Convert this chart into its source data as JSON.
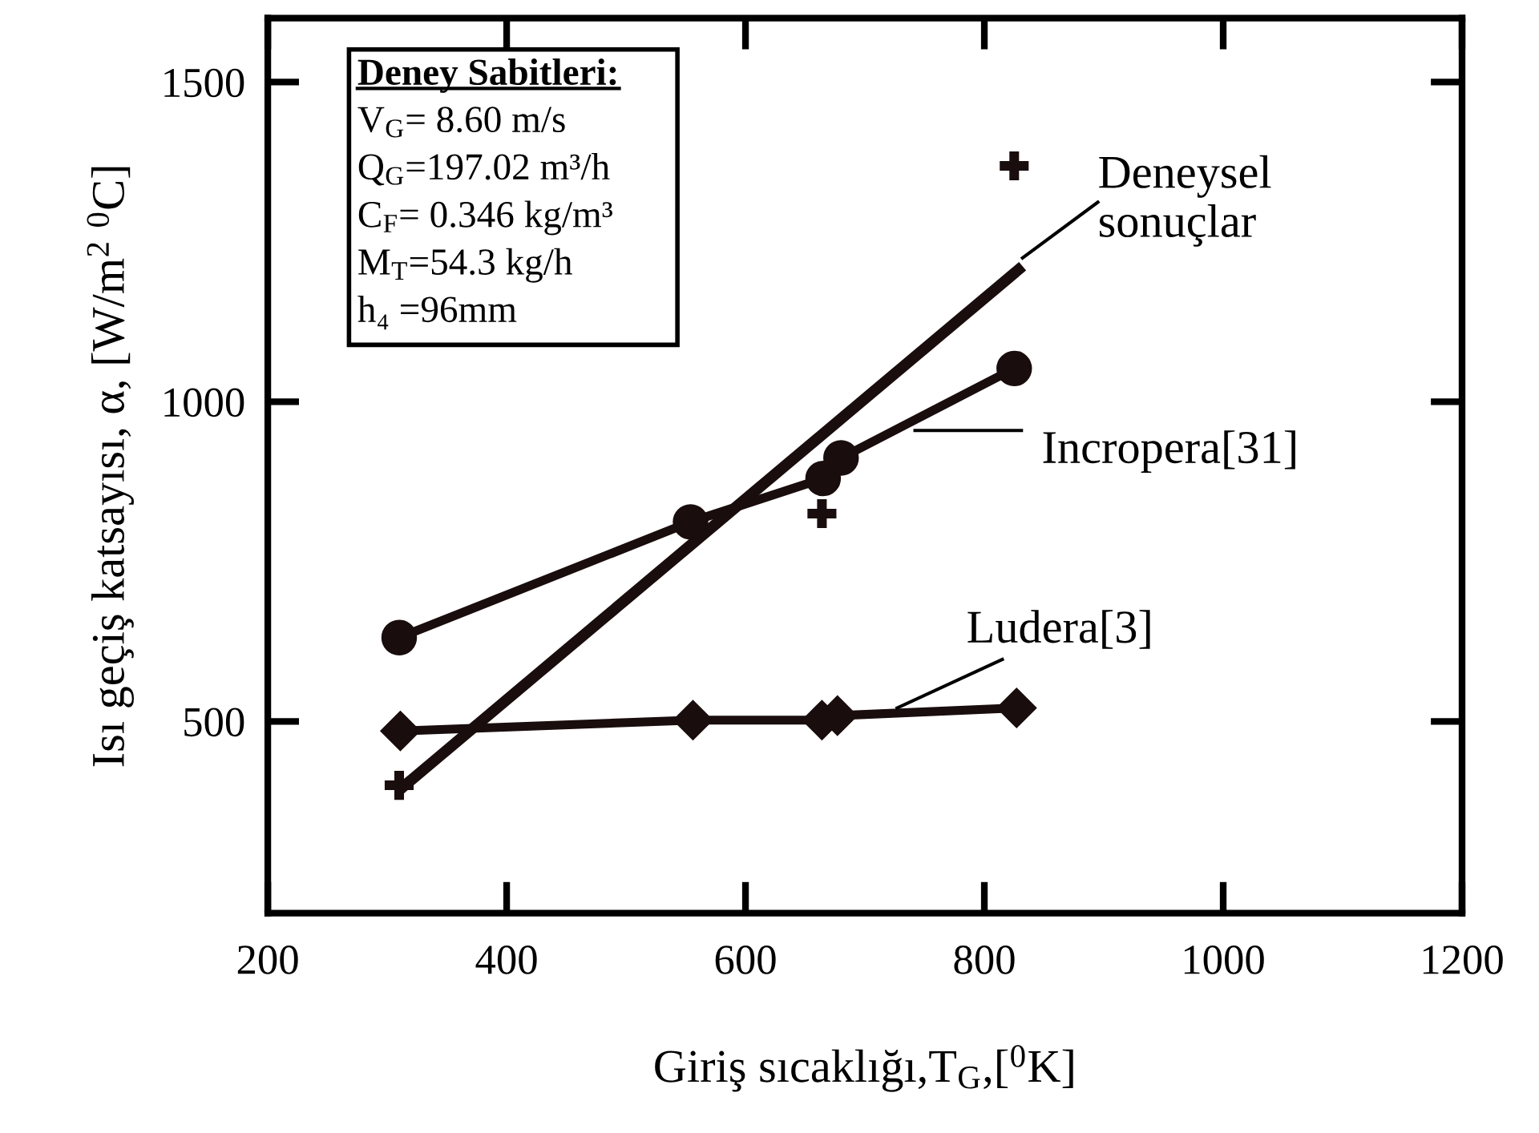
{
  "chart_data": {
    "type": "line",
    "xlabel": "Giriş sıcaklığı,T$_{G}$,[$^{0}$K]",
    "ylabel": "Isı geçiş katsayısı, α, [W/m$^{2}$ $^{0}$C]",
    "xlim": [
      200,
      1200
    ],
    "xticks": [
      200,
      400,
      600,
      800,
      1000,
      1200
    ],
    "ylim": [
      200,
      1600
    ],
    "yticks": [
      500,
      1000,
      1500
    ],
    "grid": false,
    "series": [
      {
        "name": "Deneysel\nsonuçlar",
        "type": "scatter",
        "marker": "cross",
        "color": "#1a0d0d",
        "x": [
          310,
          664,
          825
        ],
        "values": [
          400,
          825,
          1369
        ]
      },
      {
        "marker": "none",
        "color": "#1a0d0d",
        "x": [
          311,
          832
        ],
        "values": [
          394,
          1212
        ]
      },
      {
        "name": "Incropera[31]",
        "marker": "circle",
        "color": "#1a0d0d",
        "x": [
          310,
          554,
          665,
          680,
          825
        ],
        "values": [
          631,
          812,
          880,
          912,
          1052
        ]
      },
      {
        "name": "Ludera[3]",
        "marker": "diamond",
        "color": "#1a0d0d",
        "x": [
          311,
          556,
          664,
          677,
          827
        ],
        "values": [
          485,
          502,
          502,
          509,
          521
        ]
      }
    ],
    "annotations": [
      "Deney Sabitleri:",
      "V$_{G}$= 8.60 m/s",
      "Q$_{G}$=197.02 m³/h",
      "C$_{F}$= 0.346 kg/m³",
      "M$_{T}$=54.3 kg/h",
      "h₄ =96mm"
    ]
  }
}
